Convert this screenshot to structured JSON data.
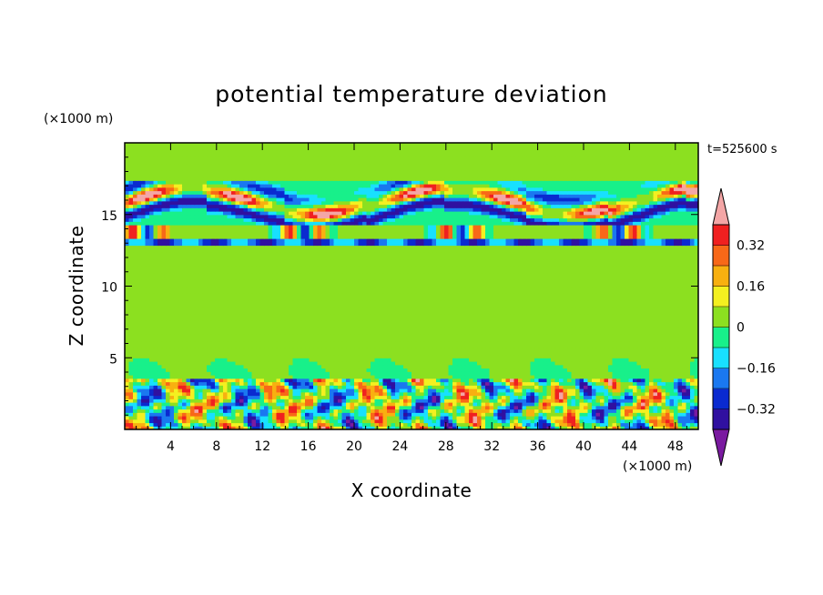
{
  "chart_data": {
    "type": "heatmap",
    "title": "potential temperature deviation",
    "xlabel": "X coordinate",
    "ylabel": "Z coordinate",
    "x_unit": "(×1000 m)",
    "y_unit": "(×1000 m)",
    "time_label": "t=525600 s",
    "xlim": [
      0,
      50
    ],
    "ylim": [
      0,
      20
    ],
    "x_ticks": [
      4,
      8,
      12,
      16,
      20,
      24,
      28,
      32,
      36,
      40,
      44,
      48
    ],
    "y_ticks": [
      5,
      10,
      15
    ],
    "colorbar": {
      "levels": [
        -0.4,
        -0.32,
        -0.24,
        -0.16,
        -0.08,
        0,
        0.08,
        0.16,
        0.24,
        0.32,
        0.4
      ],
      "tick_labels": [
        "0.32",
        "0.16",
        "0",
        "−0.16",
        "−0.32"
      ],
      "tick_values": [
        0.32,
        0.16,
        0,
        -0.16,
        -0.32
      ],
      "colors": [
        "#7a1aa0",
        "#3010a0",
        "#0a2ad0",
        "#1a78f0",
        "#18e0ff",
        "#18f08a",
        "#8ce020",
        "#f4f020",
        "#f8b010",
        "#f86818",
        "#f02020",
        "#f4a6a6"
      ]
    },
    "bands": [
      {
        "z": [
          0,
          3.5
        ],
        "pattern": "turbulent"
      },
      {
        "z": [
          3.5,
          12.8
        ],
        "pattern": "near-zero"
      },
      {
        "z": [
          12.8,
          17.5
        ],
        "pattern": "layered"
      },
      {
        "z": [
          17.5,
          20
        ],
        "pattern": "smooth"
      }
    ]
  }
}
